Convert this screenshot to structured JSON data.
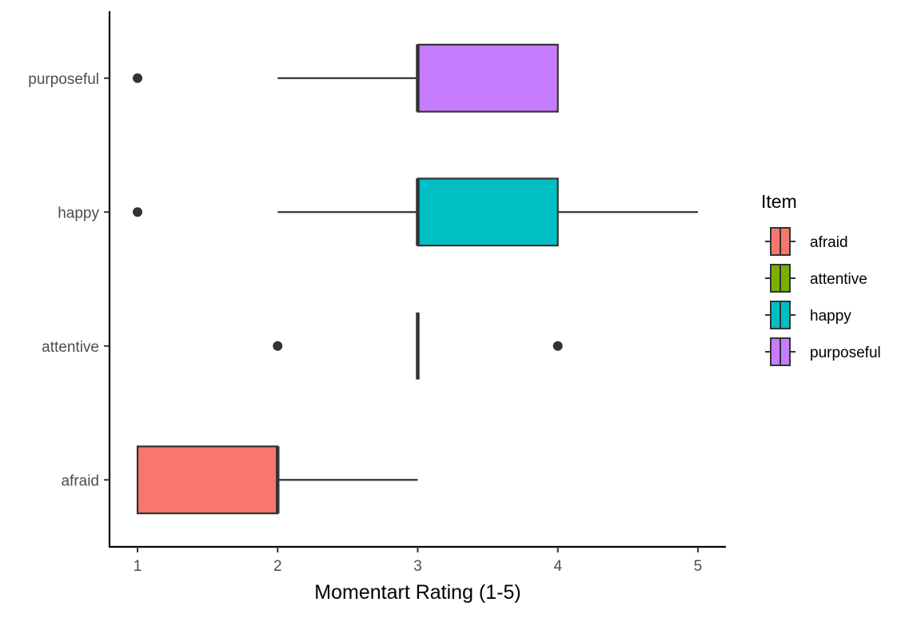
{
  "chart_data": {
    "type": "boxplot",
    "orientation": "horizontal",
    "xlabel": "Momentart Rating (1-5)",
    "ylabel": "",
    "xlim": [
      0.8,
      5.2
    ],
    "x_ticks": [
      1,
      2,
      3,
      4,
      5
    ],
    "categories": [
      "afraid",
      "attentive",
      "happy",
      "purposeful"
    ],
    "legend": {
      "title": "Item",
      "position": "right"
    },
    "grid": false,
    "series": [
      {
        "name": "afraid",
        "color": "#F8766D",
        "min": 1,
        "q1": 1,
        "median": 2,
        "q3": 2,
        "max": 3,
        "outliers": []
      },
      {
        "name": "attentive",
        "color": "#7CAE00",
        "min": 3,
        "q1": 3,
        "median": 3,
        "q3": 3,
        "max": 3,
        "outliers": [
          2,
          4
        ]
      },
      {
        "name": "happy",
        "color": "#00BFC4",
        "min": 2,
        "q1": 3,
        "median": 3,
        "q3": 4,
        "max": 5,
        "outliers": [
          1
        ]
      },
      {
        "name": "purposeful",
        "color": "#C77CFF",
        "min": 2,
        "q1": 3,
        "median": 3,
        "q3": 4,
        "max": 4,
        "outliers": [
          1
        ]
      }
    ]
  }
}
